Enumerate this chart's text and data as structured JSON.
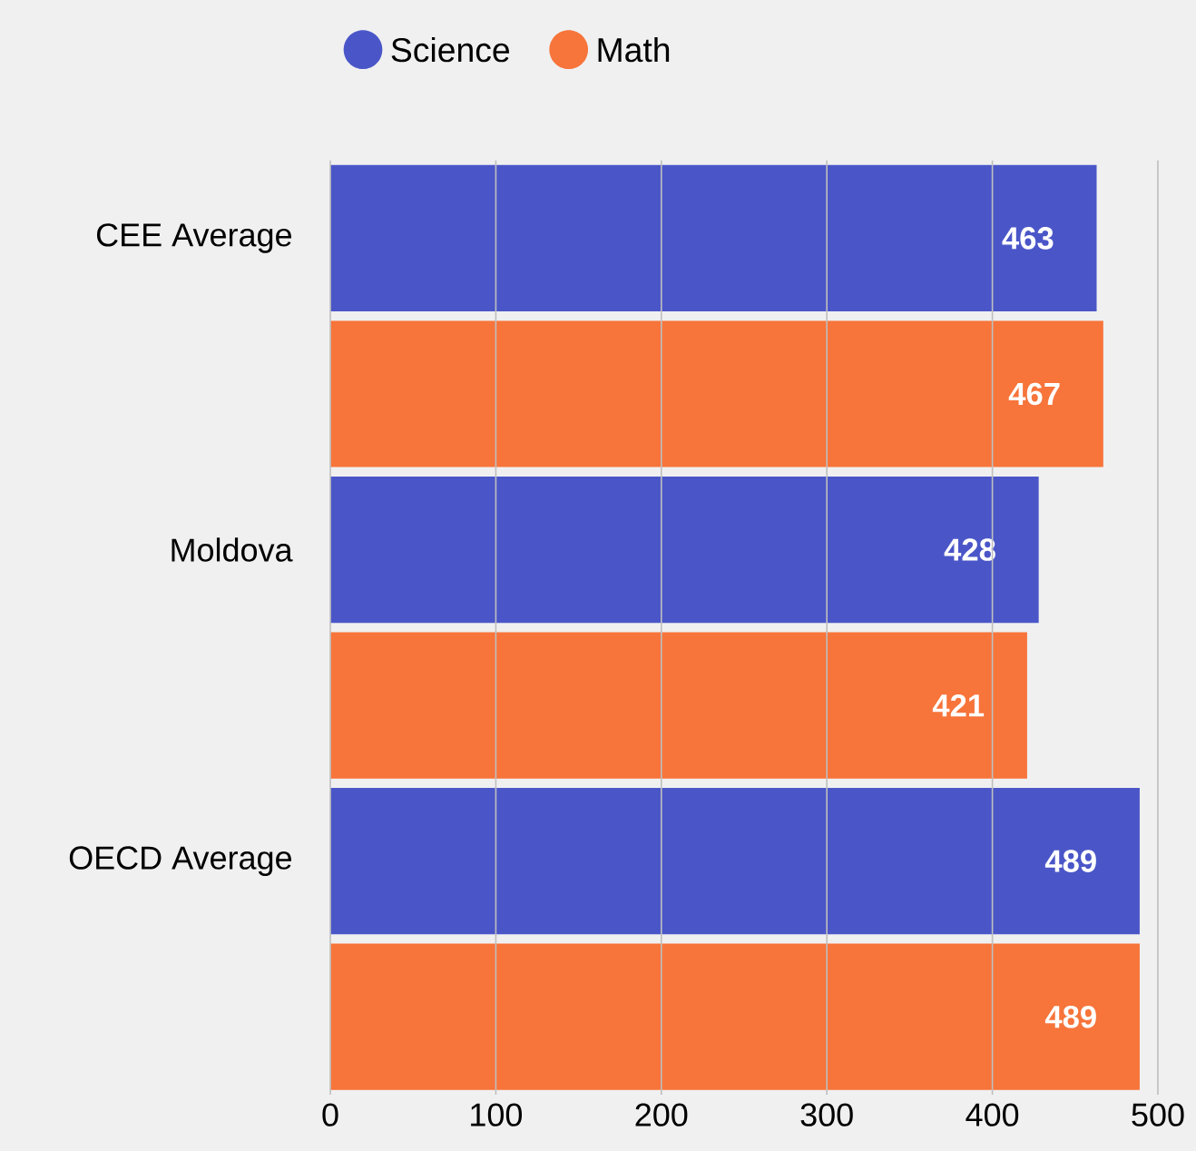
{
  "chart_data": {
    "type": "bar",
    "orientation": "horizontal",
    "categories": [
      "CEE Average",
      "Moldova",
      "OECD Average"
    ],
    "series": [
      {
        "name": "Science",
        "color": "#4a56c8",
        "values": [
          463,
          428,
          489
        ]
      },
      {
        "name": "Math",
        "color": "#f7743a",
        "values": [
          467,
          421,
          489
        ]
      }
    ],
    "xlim": [
      0,
      500
    ],
    "xticks": [
      0,
      100,
      200,
      300,
      400,
      500
    ],
    "grid": "x",
    "legend": "top",
    "data_labels": true
  }
}
